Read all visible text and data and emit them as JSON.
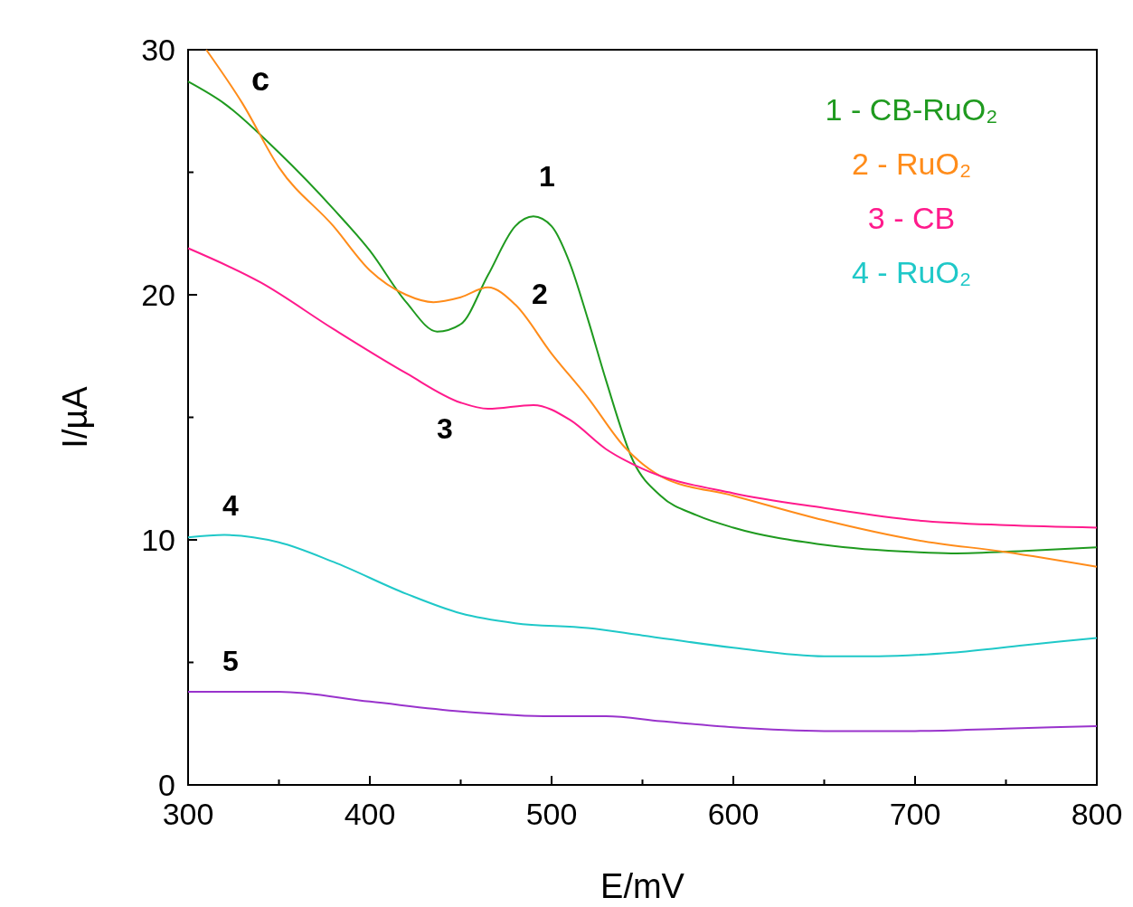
{
  "chart_data": {
    "type": "line",
    "xlabel": "E/mV",
    "ylabel": "I/µA",
    "xlim": [
      300,
      800
    ],
    "ylim": [
      0,
      30
    ],
    "xticks": [
      300,
      400,
      500,
      600,
      700,
      800
    ],
    "yticks": [
      0,
      10,
      20,
      30
    ],
    "grid": false,
    "legend": "top right",
    "line_style": "solid",
    "marker": "none",
    "annotations": [
      "c",
      "1",
      "2",
      "3",
      "4",
      "5"
    ],
    "series": [
      {
        "name": "1 - CB-RuO₂",
        "color": "#1f9a1f",
        "x": [
          300,
          320,
          350,
          380,
          400,
          420,
          437,
          450,
          465,
          480,
          490,
          500,
          510,
          520,
          530,
          545,
          560,
          580,
          600,
          650,
          700,
          720,
          760,
          800
        ],
        "values": [
          28.7,
          27.8,
          25.8,
          23.5,
          21.8,
          19.7,
          18.5,
          18.8,
          20.8,
          22.8,
          23.2,
          22.8,
          21.3,
          19,
          16.5,
          13.2,
          11.8,
          11,
          10.5,
          9.8,
          9.5,
          9.45,
          9.55,
          9.7
        ]
      },
      {
        "name": "2 - RuO₂",
        "color": "#ff8c1a",
        "x": [
          310,
          330,
          350,
          380,
          400,
          420,
          435,
          450,
          465,
          480,
          500,
          520,
          540,
          560,
          600,
          650,
          700,
          750,
          800
        ],
        "values": [
          30,
          27.8,
          25.2,
          22.8,
          21,
          20,
          19.7,
          19.9,
          20.3,
          19.6,
          17.6,
          15.8,
          13.8,
          12.6,
          11.8,
          10.8,
          10,
          9.5,
          8.9
        ]
      },
      {
        "name": "3 - CB",
        "color": "#ff1a8c",
        "x": [
          300,
          340,
          380,
          420,
          450,
          465,
          490,
          510,
          530,
          550,
          600,
          650,
          700,
          750,
          800
        ],
        "values": [
          21.9,
          20.5,
          18.6,
          16.8,
          15.6,
          15.35,
          15.5,
          14.9,
          13.7,
          12.9,
          11.9,
          11.3,
          10.8,
          10.6,
          10.5
        ]
      },
      {
        "name": "4 - RuO₂",
        "color": "#1fc8c8",
        "x": [
          300,
          320,
          350,
          380,
          420,
          450,
          480,
          520,
          550,
          600,
          650,
          680,
          720,
          760,
          800
        ],
        "values": [
          10.1,
          10.2,
          9.9,
          9.1,
          7.8,
          7.0,
          6.6,
          6.4,
          6.1,
          5.6,
          5.25,
          5.25,
          5.4,
          5.7,
          6.0
        ]
      },
      {
        "color": "#9933cc",
        "x": [
          300,
          350,
          400,
          450,
          500,
          530,
          560,
          600,
          650,
          700,
          750,
          800
        ],
        "values": [
          3.8,
          3.8,
          3.4,
          3.0,
          2.8,
          2.8,
          2.6,
          2.35,
          2.2,
          2.2,
          2.3,
          2.4
        ]
      }
    ]
  }
}
